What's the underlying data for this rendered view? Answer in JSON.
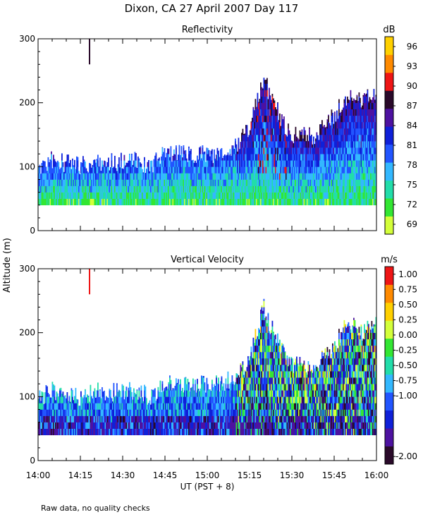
{
  "figure_title": "Dixon, CA 27 April 2007  Day 117",
  "shared_ylabel": "Altitude (m)",
  "footer_note": "Raw data, no quality checks",
  "chart_data": [
    {
      "type": "heatmap",
      "id": "reflectivity",
      "title": "Reflectivity",
      "xlabel": "",
      "ylabel": "Altitude (m)",
      "xlim_minutes": [
        0,
        120
      ],
      "ylim": [
        0,
        300
      ],
      "yticks": [
        0,
        100,
        200,
        300
      ],
      "colorbar": {
        "unit": "dB",
        "range": [
          67.5,
          97.5
        ],
        "tick_values": [
          69,
          72,
          75,
          78,
          81,
          84,
          87,
          90,
          93,
          96
        ],
        "tick_labels": [
          "69",
          "72",
          "75",
          "78",
          "81",
          "84",
          "87",
          "90",
          "93",
          "96"
        ],
        "colors": [
          "#d4ff3a",
          "#33e633",
          "#22ddaa",
          "#33b8ff",
          "#2255ff",
          "#0f20d8",
          "#4d12a0",
          "#2a0a2a",
          "#ee1515",
          "#ff8a00",
          "#ffd000"
        ]
      },
      "bottom_echo_m": 40,
      "echo_top_profile": [
        {
          "t": 0,
          "top": 95
        },
        {
          "t": 5,
          "top": 110
        },
        {
          "t": 10,
          "top": 105
        },
        {
          "t": 15,
          "top": 100
        },
        {
          "t": 20,
          "top": 110
        },
        {
          "t": 25,
          "top": 105
        },
        {
          "t": 30,
          "top": 110
        },
        {
          "t": 35,
          "top": 110
        },
        {
          "t": 40,
          "top": 100
        },
        {
          "t": 45,
          "top": 120
        },
        {
          "t": 50,
          "top": 120
        },
        {
          "t": 55,
          "top": 120
        },
        {
          "t": 60,
          "top": 120
        },
        {
          "t": 65,
          "top": 120
        },
        {
          "t": 70,
          "top": 130
        },
        {
          "t": 75,
          "top": 160
        },
        {
          "t": 78,
          "top": 210
        },
        {
          "t": 80,
          "top": 240
        },
        {
          "t": 82,
          "top": 215
        },
        {
          "t": 85,
          "top": 190
        },
        {
          "t": 88,
          "top": 155
        },
        {
          "t": 90,
          "top": 150
        },
        {
          "t": 95,
          "top": 150
        },
        {
          "t": 98,
          "top": 145
        },
        {
          "t": 100,
          "top": 155
        },
        {
          "t": 103,
          "top": 175
        },
        {
          "t": 105,
          "top": 175
        },
        {
          "t": 108,
          "top": 205
        },
        {
          "t": 110,
          "top": 205
        },
        {
          "t": 112,
          "top": 210
        },
        {
          "t": 115,
          "top": 200
        },
        {
          "t": 118,
          "top": 220
        },
        {
          "t": 120,
          "top": 210
        }
      ],
      "isolated_echo": {
        "t_start": 18,
        "t_end": 18.5,
        "alt_min": 260,
        "alt_max": 300,
        "value": 87
      }
    },
    {
      "type": "heatmap",
      "id": "vertical_velocity",
      "title": "Vertical Velocity",
      "xlabel": "UT  (PST + 8)",
      "ylabel": "Altitude (m)",
      "xlim_minutes": [
        0,
        120
      ],
      "xticks_minutes": [
        0,
        15,
        30,
        45,
        60,
        75,
        90,
        105,
        120
      ],
      "xtick_labels": [
        "14:00",
        "14:15",
        "14:30",
        "14:45",
        "15:00",
        "15:15",
        "15:30",
        "15:45",
        "16:00"
      ],
      "ylim": [
        0,
        300
      ],
      "yticks": [
        0,
        100,
        200,
        300
      ],
      "colorbar": {
        "unit": "m/s",
        "range": [
          -2.125,
          1.125
        ],
        "tick_values": [
          -2.0,
          -1.0,
          -0.75,
          -0.5,
          -0.25,
          0.0,
          0.25,
          0.5,
          0.75,
          1.0
        ],
        "tick_labels": [
          "-2.00",
          "-1.00",
          "-0.75",
          "-0.50",
          "-0.25",
          "0.00",
          "0.25",
          "0.50",
          "0.75",
          "1.00"
        ],
        "colors": [
          "#2a0a2a",
          "#4d12a0",
          "#0f20d8",
          "#2255ff",
          "#33b8ff",
          "#22ddaa",
          "#33e633",
          "#d4ff3a",
          "#ffd000",
          "#ff8a00",
          "#ee1515"
        ]
      },
      "bottom_echo_m": 40,
      "echo_top_profile": [
        {
          "t": 0,
          "top": 95
        },
        {
          "t": 5,
          "top": 110
        },
        {
          "t": 10,
          "top": 105
        },
        {
          "t": 15,
          "top": 100
        },
        {
          "t": 20,
          "top": 110
        },
        {
          "t": 25,
          "top": 105
        },
        {
          "t": 30,
          "top": 110
        },
        {
          "t": 35,
          "top": 110
        },
        {
          "t": 40,
          "top": 100
        },
        {
          "t": 45,
          "top": 120
        },
        {
          "t": 50,
          "top": 120
        },
        {
          "t": 55,
          "top": 120
        },
        {
          "t": 60,
          "top": 120
        },
        {
          "t": 65,
          "top": 120
        },
        {
          "t": 70,
          "top": 130
        },
        {
          "t": 75,
          "top": 160
        },
        {
          "t": 78,
          "top": 210
        },
        {
          "t": 80,
          "top": 240
        },
        {
          "t": 82,
          "top": 215
        },
        {
          "t": 85,
          "top": 190
        },
        {
          "t": 88,
          "top": 155
        },
        {
          "t": 90,
          "top": 150
        },
        {
          "t": 95,
          "top": 150
        },
        {
          "t": 98,
          "top": 145
        },
        {
          "t": 100,
          "top": 155
        },
        {
          "t": 103,
          "top": 175
        },
        {
          "t": 105,
          "top": 175
        },
        {
          "t": 108,
          "top": 205
        },
        {
          "t": 110,
          "top": 205
        },
        {
          "t": 112,
          "top": 210
        },
        {
          "t": 115,
          "top": 200
        },
        {
          "t": 118,
          "top": 220
        },
        {
          "t": 120,
          "top": 210
        }
      ],
      "isolated_echo": {
        "t_start": 18,
        "t_end": 18.5,
        "alt_min": 260,
        "alt_max": 300,
        "value": 1.0
      }
    }
  ]
}
